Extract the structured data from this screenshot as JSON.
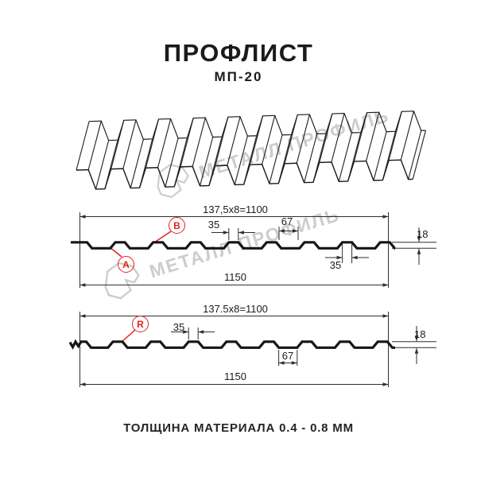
{
  "header": {
    "title": "ПРОФЛИСТ",
    "subtitle": "МП-20"
  },
  "watermark": {
    "text": "МЕТАЛЛ ПРОФИЛЬ"
  },
  "section_top": {
    "label_a": "A",
    "label_b": "B",
    "dims": {
      "module": "137,5x8=1100",
      "rib_top": "35",
      "spacing": "67",
      "height": "18",
      "rib_bottom": "35",
      "total": "1150"
    }
  },
  "section_bottom": {
    "label_r": "R",
    "dims": {
      "module": "137.5x8=1100",
      "rib_top": "35",
      "spacing": "67",
      "height": "18",
      "total": "1150"
    }
  },
  "footer": {
    "text": "ТОЛЩИНА МАТЕРИАЛА 0.4 - 0.8 ММ"
  },
  "colors": {
    "accent_red": "#e2231a",
    "line": "#1a1a1a",
    "watermark": "#cdcdcd"
  }
}
